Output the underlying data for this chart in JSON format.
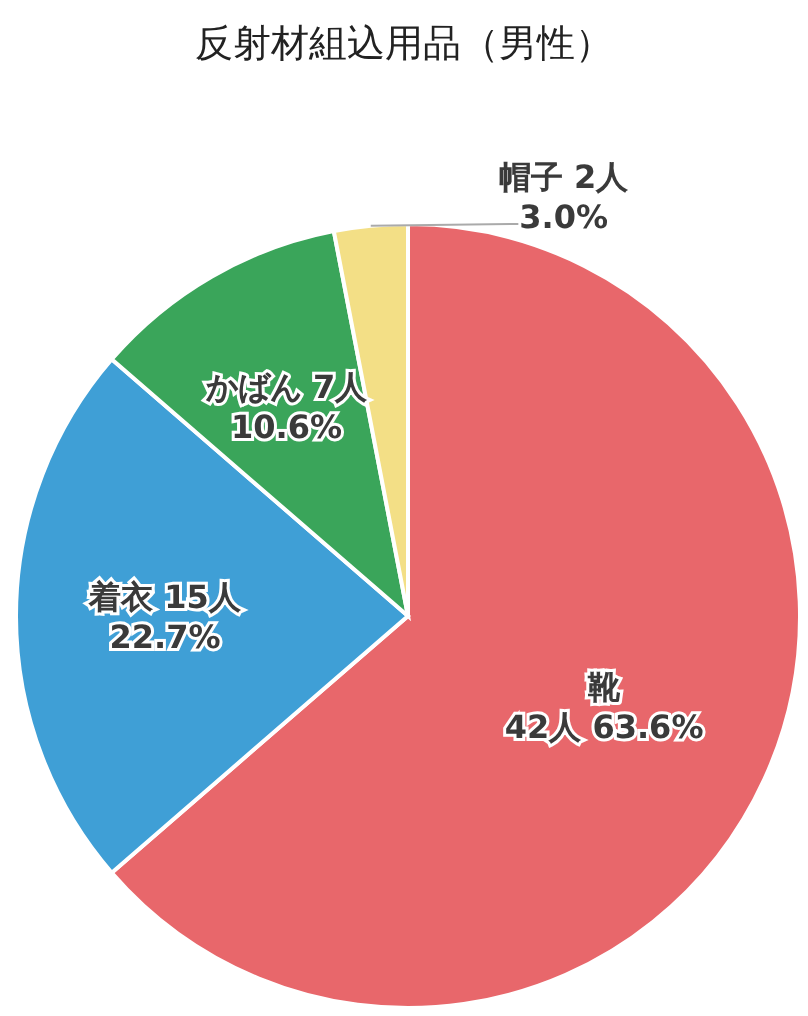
{
  "chart_data": {
    "type": "pie",
    "title": "反射材組込用品（男性）",
    "categories": [
      "靴",
      "着衣",
      "かばん",
      "帽子"
    ],
    "values": [
      42,
      15,
      7,
      2
    ],
    "value_labels": [
      "42人 63.6%",
      "15人 22.7%",
      "7人 10.6%",
      "2人 3.0%"
    ],
    "colors": [
      "#e8676b",
      "#3f9fd6",
      "#3aa55a",
      "#f3df86"
    ]
  }
}
